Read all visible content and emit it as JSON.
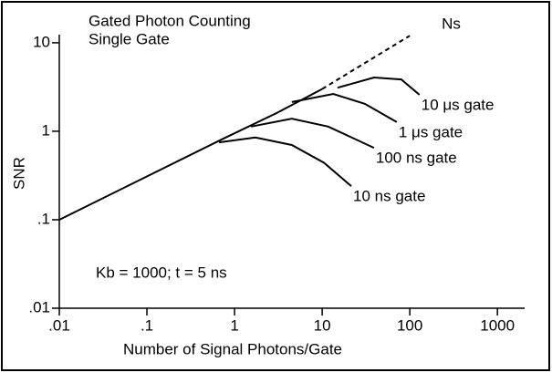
{
  "chart_data": {
    "type": "line",
    "title": "Gated Photon Counting",
    "subtitle": "Single Gate",
    "annotation": "Kb = 1000; t = 5 ns",
    "x_label": "Number of Signal Photons/Gate",
    "y_label": "SNR",
    "xscale": "log",
    "yscale": "log",
    "xlim": [
      0.01,
      3000
    ],
    "ylim": [
      0.01,
      24
    ],
    "xticks": [
      {
        "value": 0.01,
        "label": ".01"
      },
      {
        "value": 0.1,
        "label": ".1"
      },
      1,
      10,
      100,
      1000
    ],
    "yticks": [
      {
        "value": 0.01,
        "label": ".01"
      },
      {
        "value": 0.1,
        "label": ".1"
      },
      1,
      10
    ],
    "color": "#000000",
    "series": [
      {
        "x": [
          0.01,
          0.7,
          3,
          10
        ],
        "values": [
          0.1,
          0.8,
          1.6,
          3
        ]
      },
      {
        "name": "Ns",
        "dashed": true,
        "x": [
          10,
          100
        ],
        "values": [
          3,
          12
        ]
      },
      {
        "name": "10 μs gate",
        "x": [
          15,
          39,
          80,
          129
        ],
        "values": [
          3.1,
          4.05,
          3.85,
          2.58
        ]
      },
      {
        "name": "1 μs gate",
        "x": [
          4.5,
          13.4,
          30.8,
          71
        ],
        "values": [
          2.14,
          2.64,
          2.04,
          1.27
        ]
      },
      {
        "name": "100 ns gate",
        "x": [
          1.54,
          4.5,
          11.7,
          39
        ],
        "values": [
          1.13,
          1.39,
          1.13,
          0.65
        ]
      },
      {
        "name": "10 ns gate",
        "x": [
          0.665,
          1.73,
          4.5,
          10.5,
          21.5
        ],
        "values": [
          0.75,
          0.85,
          0.7,
          0.44,
          0.24
        ]
      }
    ]
  }
}
